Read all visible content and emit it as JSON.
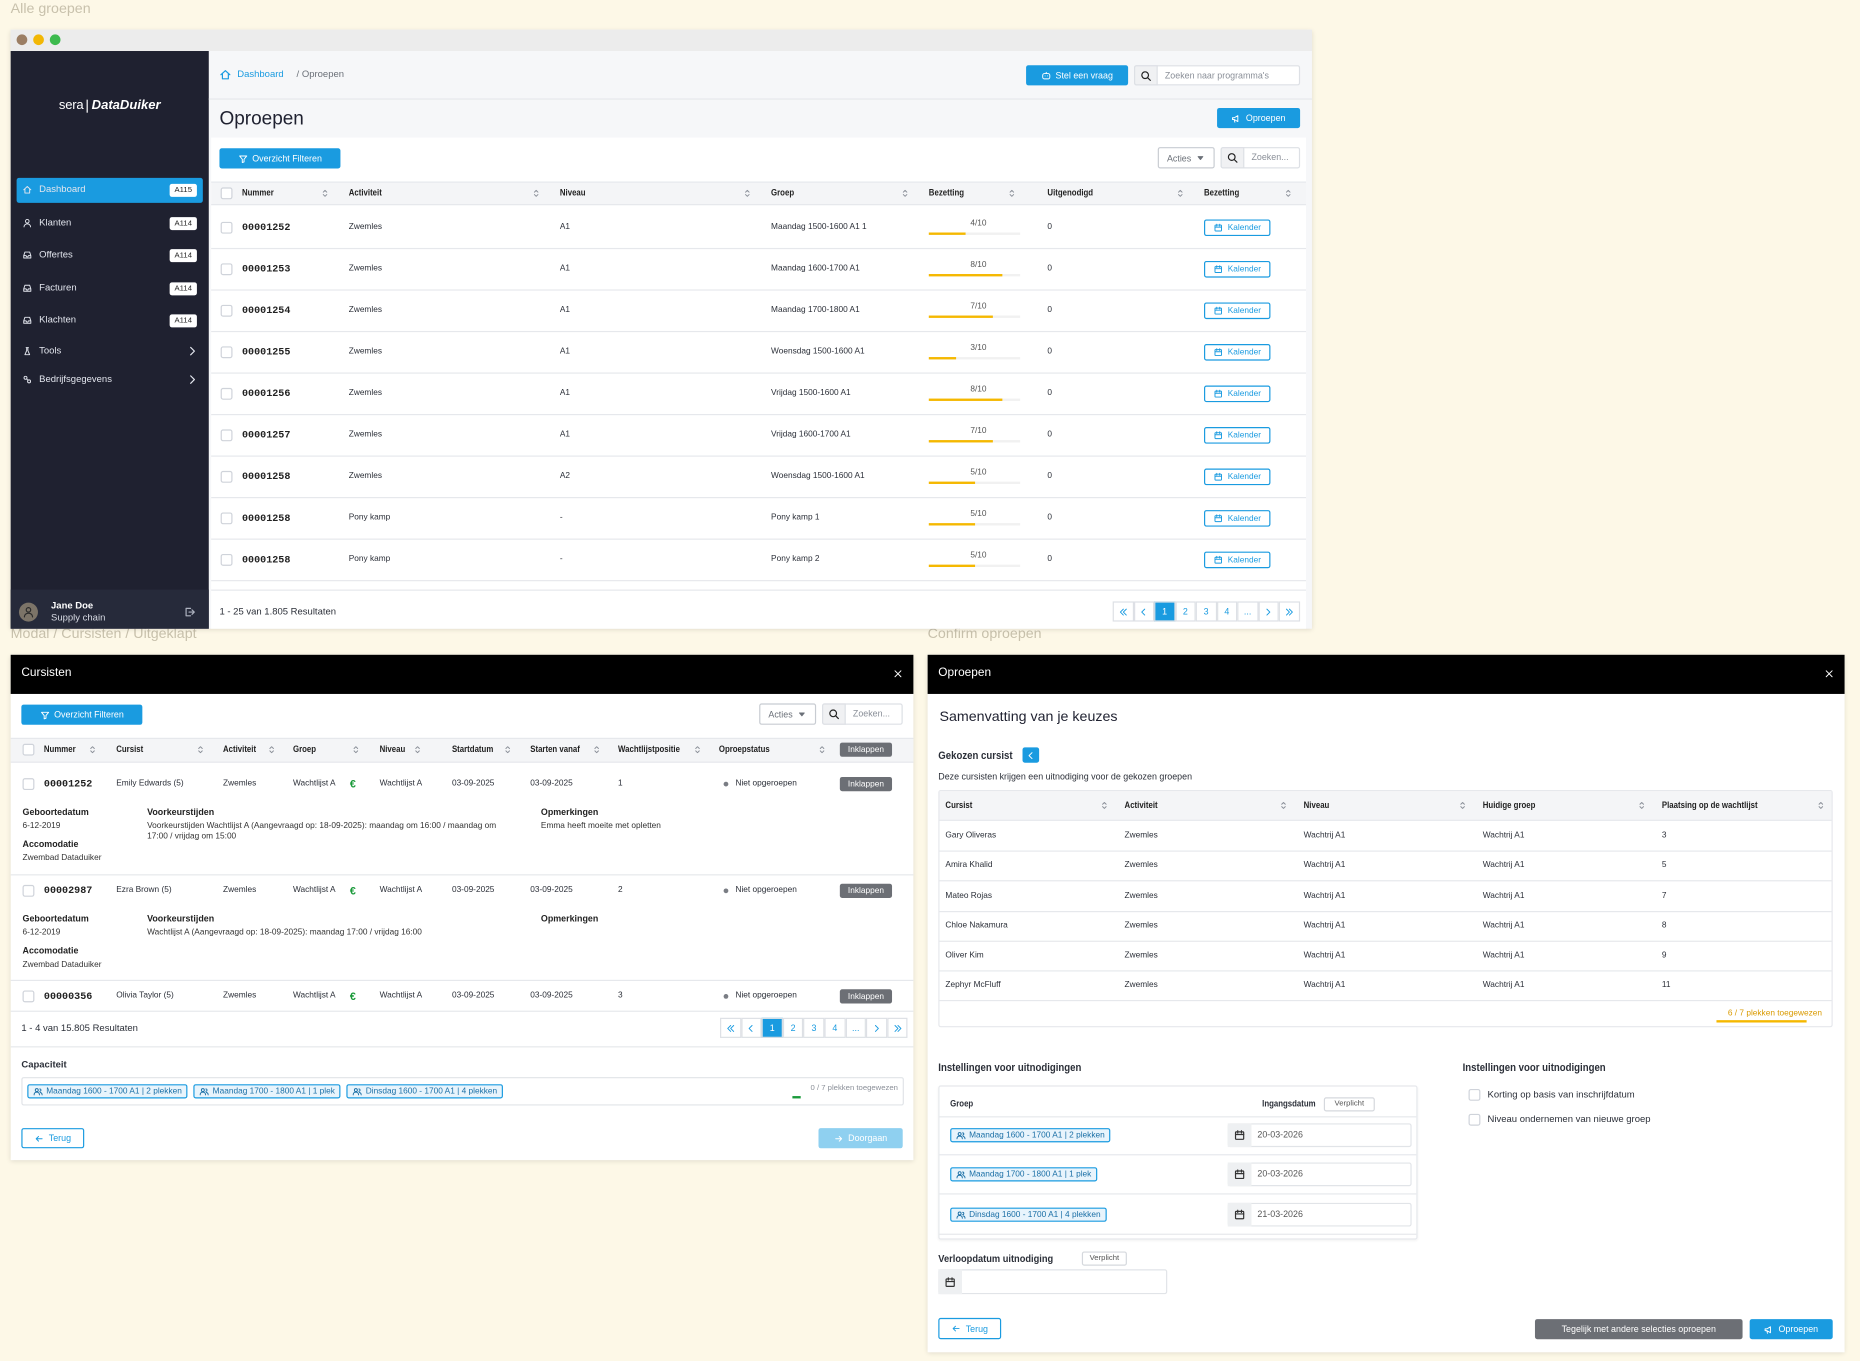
{
  "section_labels": [
    "Alle groepen",
    "Modal / Cursisten / Uitgeklapt",
    "Confirm oproepen"
  ],
  "app": {
    "logo": {
      "brand": "sera",
      "product": "DataDuiker"
    },
    "nav": [
      {
        "label": "Dashboard",
        "badge": "A115"
      },
      {
        "label": "Klanten",
        "badge": "A114"
      },
      {
        "label": "Offertes",
        "badge": "A114"
      },
      {
        "label": "Facturen",
        "badge": "A114"
      },
      {
        "label": "Klachten",
        "badge": "A114"
      },
      {
        "label": "Tools"
      },
      {
        "label": "Bedrijfsgegevens"
      }
    ],
    "user": {
      "name": "Jane Doe",
      "role": "Supply chain"
    },
    "breadcrumb": {
      "home": "Dashboard",
      "current": "/ Oproepen"
    },
    "ask_button": "Stel een vraag",
    "search_placeholder": "Zoeken naar programma's",
    "title": "Oproepen",
    "primary_button": "Oproepen",
    "filter_button": "Overzicht Filteren",
    "actions": "Acties",
    "search": "Zoeken...",
    "table": {
      "columns": [
        "Nummer",
        "Activiteit",
        "Niveau",
        "Groep",
        "Bezetting",
        "Uitgenodigd",
        "Bezetting"
      ],
      "rows": [
        [
          "00001252",
          "Zwemles",
          "A1",
          "Maandag 1500-1600 A1 1",
          "4/10",
          "0",
          "Kalender"
        ],
        [
          "00001253",
          "Zwemles",
          "A1",
          "Maandag 1600-1700 A1",
          "8/10",
          "0",
          "Kalender"
        ],
        [
          "00001254",
          "Zwemles",
          "A1",
          "Maandag 1700-1800 A1",
          "7/10",
          "0",
          "Kalender"
        ],
        [
          "00001255",
          "Zwemles",
          "A1",
          "Woensdag 1500-1600 A1",
          "3/10",
          "0",
          "Kalender"
        ],
        [
          "00001256",
          "Zwemles",
          "A1",
          "Vrijdag 1500-1600 A1",
          "8/10",
          "0",
          "Kalender"
        ],
        [
          "00001257",
          "Zwemles",
          "A1",
          "Vrijdag 1600-1700 A1",
          "7/10",
          "0",
          "Kalender"
        ],
        [
          "00001258",
          "Zwemles",
          "A2",
          "Woensdag 1500-1600 A1",
          "5/10",
          "0",
          "Kalender"
        ],
        [
          "00001258",
          "Pony kamp",
          "-",
          "Pony kamp 1",
          "5/10",
          "0",
          "Kalender"
        ],
        [
          "00001258",
          "Pony kamp",
          "-",
          "Pony kamp 2",
          "5/10",
          "0",
          "Kalender"
        ]
      ]
    },
    "results": "1 - 25 van 1.805 Resultaten",
    "pages": [
      "1",
      "2",
      "3",
      "4",
      "..."
    ]
  },
  "students_modal": {
    "title": "Cursisten",
    "filter_button": "Overzicht Filteren",
    "actions": "Acties",
    "search": "Zoeken...",
    "columns": [
      "Nummer",
      "Cursist",
      "Activiteit",
      "Groep",
      "Niveau",
      "Startdatum",
      "Starten vanaf",
      "Wachtlijstpositie",
      "Oproepstatus"
    ],
    "collapse": "Inklappen",
    "fee_symbol": "€",
    "detail_labels": {
      "birth_date": "Geboortedatum",
      "accommodation": "Accomodatie",
      "preferences": "Voorkeurstijden",
      "remarks": "Opmerkingen"
    },
    "rows": [
      {
        "cells": [
          "00001252",
          "Emily Edwards (5)",
          "Zwemles",
          "Wachtlijst A",
          "Wachtlijst A",
          "03-09-2025",
          "03-09-2025",
          "1",
          "Niet opgeroepen"
        ],
        "details": {
          "birth_date": "6-12-2019",
          "accommodation": "Zwembad Dataduiker",
          "preferences": "Voorkeurstijden Wachtlijst A (Aangevraagd op: 18-09-2025): maandag om 16:00 / maandag om 17:00 / vrijdag om 15:00",
          "remarks": "Emma heeft moeite met opletten"
        }
      },
      {
        "cells": [
          "00002987",
          "Ezra Brown (5)",
          "Zwemles",
          "Wachtlijst A",
          "Wachtlijst A",
          "03-09-2025",
          "03-09-2025",
          "2",
          "Niet opgeroepen"
        ],
        "details": {
          "birth_date": "6-12-2019",
          "accommodation": "Zwembad Dataduiker",
          "preferences": "Wachtlijst A (Aangevraagd op: 18-09-2025): maandag 17:00 / vrijdag 16:00"
        }
      },
      {
        "cells": [
          "00000356",
          "Olivia Taylor (5)",
          "Zwemles",
          "Wachtlijst A",
          "Wachtlijst A",
          "03-09-2025",
          "03-09-2025",
          "3",
          "Niet opgeroepen"
        ]
      }
    ],
    "results": "1 - 4 van 15.805 Resultaten",
    "pages": [
      "1",
      "2",
      "3",
      "4",
      "..."
    ],
    "capacity_label": "Capaciteit",
    "chips": [
      "Maandag 1600 - 1700 A1 | 2 plekken",
      "Maandag 1700 - 1800 A1 | 1 plek",
      "Dinsdag 1600 - 1700 A1 | 4 plekken"
    ],
    "assigned": "0 / 7 plekken toegewezen",
    "back": "Terug",
    "next": "Doorgaan"
  },
  "confirm_modal": {
    "title": "Oproepen",
    "summary": "Samenvatting van je keuzes",
    "chosen_label": "Gekozen cursist",
    "description": "Deze cursisten krijgen een uitnodiging voor de gekozen groepen",
    "columns": [
      "Cursist",
      "Activiteit",
      "Niveau",
      "Huidige groep",
      "Plaatsing op de wachtlijst"
    ],
    "rows": [
      [
        "Gary Oliveras",
        "Zwemles",
        "Wachtrij A1",
        "Wachtrij A1",
        "3"
      ],
      [
        "Amira Khalid",
        "Zwemles",
        "Wachtrij A1",
        "Wachtrij A1",
        "5"
      ],
      [
        "Mateo Rojas",
        "Zwemles",
        "Wachtrij A1",
        "Wachtrij A1",
        "7"
      ],
      [
        "Chloe Nakamura",
        "Zwemles",
        "Wachtrij A1",
        "Wachtrij A1",
        "8"
      ],
      [
        "Oliver Kim",
        "Zwemles",
        "Wachtrij A1",
        "Wachtrij A1",
        "9"
      ],
      [
        "Zephyr McFluff",
        "Zwemles",
        "Wachtrij A1",
        "Wachtrij A1",
        "11"
      ]
    ],
    "assigned": "6 / 7 plekken toegewezen",
    "settings": {
      "title": "Instellingen voor uitnodigingen",
      "group_label": "Groep",
      "start_label": "Ingangsdatum",
      "required": "Verplicht",
      "groups": [
        {
          "chip": "Maandag 1600 - 1700 A1 | 2 plekken",
          "date": "20-03-2026"
        },
        {
          "chip": "Maandag 1700 - 1800 A1 | 1 plek",
          "date": "20-03-2026"
        },
        {
          "chip": "Dinsdag 1600 - 1700 A1 | 4 plekken",
          "date": "21-03-2026"
        }
      ]
    },
    "options": {
      "title": "Instellingen voor uitnodigingen",
      "items": [
        "Korting op basis van inschrijfdatum",
        "Niveau ondernemen van nieuwe groep"
      ]
    },
    "expiry_label": "Verloopdatum uitnodiging",
    "expiry_required": "Verplicht",
    "back": "Terug",
    "secondary_button": "Tegelijk met andere selecties oproepen",
    "primary_button": "Oproepen"
  }
}
